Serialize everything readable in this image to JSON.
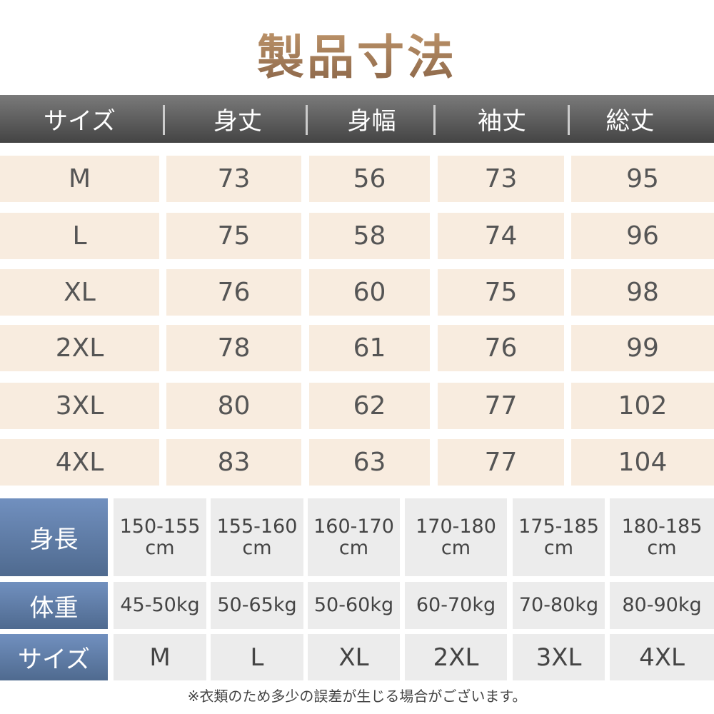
{
  "title": "製品寸法",
  "size_table": {
    "headers": [
      "サイズ",
      "身丈",
      "身幅",
      "袖丈",
      "総丈"
    ],
    "rows": [
      [
        "M",
        "73",
        "56",
        "73",
        "95"
      ],
      [
        "L",
        "75",
        "58",
        "74",
        "96"
      ],
      [
        "XL",
        "76",
        "60",
        "75",
        "98"
      ],
      [
        "2XL",
        "78",
        "61",
        "76",
        "99"
      ],
      [
        "3XL",
        "80",
        "62",
        "77",
        "102"
      ],
      [
        "4XL",
        "83",
        "63",
        "77",
        "104"
      ]
    ]
  },
  "guide_table": {
    "rows": [
      {
        "label": "身長",
        "values": [
          "150-155",
          "155-160",
          "160-170",
          "170-180",
          "175-185",
          "180-185"
        ],
        "unit": "cm"
      },
      {
        "label": "体重",
        "values": [
          "45-50kg",
          "50-65kg",
          "50-60kg",
          "60-70kg",
          "70-80kg",
          "80-90kg"
        ]
      },
      {
        "label": "サイズ",
        "values": [
          "M",
          "L",
          "XL",
          "2XL",
          "3XL",
          "4XL"
        ]
      }
    ]
  },
  "note": "※衣類のため多少の誤差が生じる場合がございます。",
  "colors": {
    "header": "#5a5a5a",
    "cell": "#f8ecdf",
    "label": "#6483b0",
    "guide_cell": "#ececec"
  }
}
